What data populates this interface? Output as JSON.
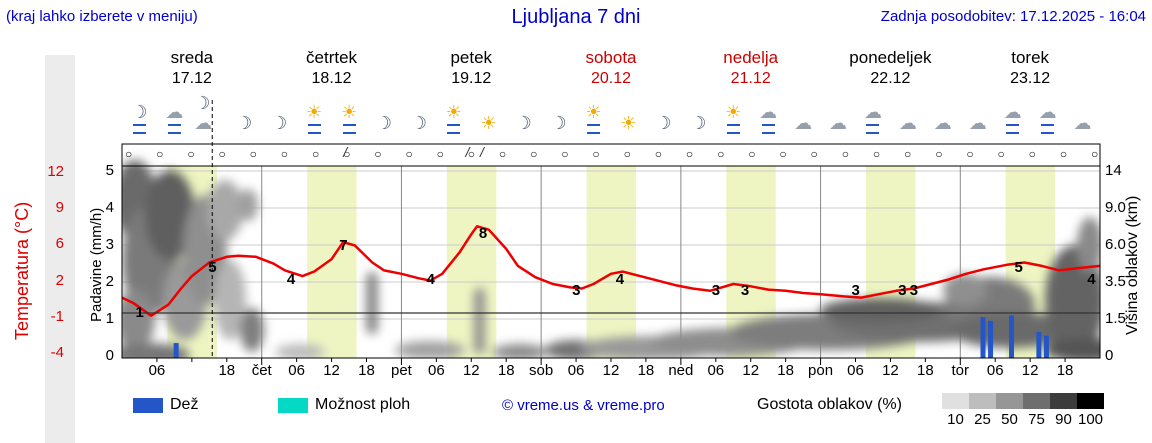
{
  "header": {
    "menu_hint": "(kraj lahko izberete v meniju)",
    "title": "Ljubljana 7 dni",
    "last_update": "Zadnja posodobitev: 17.12.2025 - 16:04"
  },
  "days": [
    {
      "name": "sreda",
      "date": "17.12",
      "color": "#000000"
    },
    {
      "name": "četrtek",
      "date": "18.12",
      "color": "#000000"
    },
    {
      "name": "petek",
      "date": "19.12",
      "color": "#000000"
    },
    {
      "name": "sobota",
      "date": "20.12",
      "color": "#cc0000"
    },
    {
      "name": "nedelja",
      "date": "21.12",
      "color": "#cc0000"
    },
    {
      "name": "ponedeljek",
      "date": "22.12",
      "color": "#000000"
    },
    {
      "name": "torek",
      "date": "23.12",
      "color": "#000000"
    }
  ],
  "weather_icons": [
    "moon-rain",
    "cloud-rain",
    "moon-cloud",
    "moon",
    "moon",
    "sun-rain",
    "sun-rain",
    "moon",
    "moon",
    "sun-rain",
    "sun",
    "moon",
    "moon",
    "sun-rain",
    "sun",
    "moon",
    "moon",
    "sun-rain",
    "cloud-rain",
    "cloud",
    "cloud",
    "cloud-rain",
    "cloud",
    "cloud",
    "cloud",
    "cloud-rain",
    "cloud-rain",
    "cloud"
  ],
  "cloud_cover": {
    "symbol": "○",
    "count": 32,
    "special_marks": [
      {
        "hour": 38,
        "glyph": "/"
      },
      {
        "hour": 59,
        "glyph": "/"
      },
      {
        "hour": 61.5,
        "glyph": "/"
      }
    ]
  },
  "axes": {
    "temperature": {
      "label": "Temperatura (°C)",
      "ticks": [
        "12",
        "9",
        "6",
        "2",
        "-1",
        "-4"
      ],
      "color": "#dd0000"
    },
    "precipitation": {
      "label": "Padavine (mm/h)",
      "ticks": [
        "5",
        "4",
        "3",
        "2",
        "1",
        "0"
      ]
    },
    "cloud_height": {
      "label": "Višina oblakov (km)",
      "ticks": [
        "14",
        "9.0",
        "6.0",
        "3.5",
        "1.5",
        "0"
      ]
    }
  },
  "xaxis": {
    "labels": [
      {
        "d": 0,
        "h": 6,
        "t": "06"
      },
      {
        "d": 0,
        "h": 18,
        "t": "18"
      },
      {
        "d": 1,
        "h": 0,
        "t": "čet"
      },
      {
        "d": 1,
        "h": 6,
        "t": "06"
      },
      {
        "d": 1,
        "h": 12,
        "t": "12"
      },
      {
        "d": 1,
        "h": 18,
        "t": "18"
      },
      {
        "d": 2,
        "h": 0,
        "t": "pet"
      },
      {
        "d": 2,
        "h": 6,
        "t": "06"
      },
      {
        "d": 2,
        "h": 12,
        "t": "12"
      },
      {
        "d": 2,
        "h": 18,
        "t": "18"
      },
      {
        "d": 3,
        "h": 0,
        "t": "sob"
      },
      {
        "d": 3,
        "h": 6,
        "t": "06"
      },
      {
        "d": 3,
        "h": 12,
        "t": "12"
      },
      {
        "d": 3,
        "h": 18,
        "t": "18"
      },
      {
        "d": 4,
        "h": 0,
        "t": "ned"
      },
      {
        "d": 4,
        "h": 6,
        "t": "06"
      },
      {
        "d": 4,
        "h": 12,
        "t": "12"
      },
      {
        "d": 4,
        "h": 18,
        "t": "18"
      },
      {
        "d": 5,
        "h": 0,
        "t": "pon"
      },
      {
        "d": 5,
        "h": 6,
        "t": "06"
      },
      {
        "d": 5,
        "h": 12,
        "t": "12"
      },
      {
        "d": 5,
        "h": 18,
        "t": "18"
      },
      {
        "d": 6,
        "h": 0,
        "t": "tor"
      },
      {
        "d": 6,
        "h": 6,
        "t": "06"
      },
      {
        "d": 6,
        "h": 12,
        "t": "12"
      },
      {
        "d": 6,
        "h": 18,
        "t": "18"
      }
    ]
  },
  "legend": {
    "rain": "Dež",
    "showers": "Možnost ploh",
    "copyright": "© vreme.us & vreme.pro",
    "cloud_density": "Gostota oblakov (%)",
    "density_ticks": [
      "10",
      "25",
      "50",
      "75",
      "90",
      "100"
    ],
    "density_colors": [
      "#e0e0e0",
      "#bdbdbd",
      "#969696",
      "#6e6e6e",
      "#3c3c3c",
      "#000000"
    ]
  },
  "colors": {
    "blue_text": "#0000cc",
    "red_text": "#dd0000",
    "temperature_line": "#ee0000",
    "rain": "#2456c8",
    "showers": "#06d8c6",
    "daylight_band": "#eef5c2"
  },
  "chart_data": {
    "type": "line",
    "title": "Ljubljana 7 dni",
    "subtitle": "7-day meteogram: temperature line, precipitation bars, cloud density shading",
    "x_axis": {
      "span_days": 7,
      "start_day": "sreda 17.12",
      "end_day": "torek 23.12",
      "hour_ticks": [
        6,
        12,
        18
      ]
    },
    "y_left_temperature": {
      "label": "Temperatura (°C)",
      "ticks": [
        12,
        9,
        6,
        2,
        -1,
        -4
      ]
    },
    "y_left_precipitation": {
      "label": "Padavine (mm/h)",
      "ticks": [
        0,
        1,
        2,
        3,
        4,
        5
      ]
    },
    "y_right_cloud_height": {
      "label": "Višina oblakov (km)",
      "ticks": [
        0,
        1.5,
        3.5,
        6.0,
        9.0,
        14
      ]
    },
    "temperature_series": {
      "name": "Temperatura",
      "color": "#ee0000",
      "x_unit": "hours from 17.12 00:00",
      "points": [
        [
          0,
          0.9
        ],
        [
          2,
          0.4
        ],
        [
          5,
          -0.7
        ],
        [
          8,
          0.3
        ],
        [
          10,
          1.6
        ],
        [
          12,
          2.8
        ],
        [
          15,
          4.0
        ],
        [
          18,
          4.5
        ],
        [
          20,
          4.6
        ],
        [
          23,
          4.5
        ],
        [
          26,
          3.9
        ],
        [
          28,
          3.3
        ],
        [
          31,
          2.8
        ],
        [
          33,
          3.2
        ],
        [
          36,
          4.3
        ],
        [
          38,
          5.8
        ],
        [
          40,
          5.5
        ],
        [
          43,
          4.0
        ],
        [
          45,
          3.3
        ],
        [
          48,
          3.0
        ],
        [
          51,
          2.6
        ],
        [
          53,
          2.4
        ],
        [
          55,
          3.0
        ],
        [
          58,
          4.9
        ],
        [
          60,
          6.5
        ],
        [
          61,
          7.2
        ],
        [
          63,
          6.9
        ],
        [
          66,
          5.2
        ],
        [
          68,
          3.7
        ],
        [
          71,
          2.7
        ],
        [
          74,
          2.1
        ],
        [
          77,
          1.8
        ],
        [
          79,
          1.7
        ],
        [
          81,
          2.1
        ],
        [
          84,
          3.0
        ],
        [
          86,
          3.2
        ],
        [
          89,
          2.8
        ],
        [
          92,
          2.4
        ],
        [
          95,
          2.0
        ],
        [
          98,
          1.7
        ],
        [
          101,
          1.5
        ],
        [
          103,
          1.8
        ],
        [
          105,
          2.1
        ],
        [
          108,
          1.9
        ],
        [
          111,
          1.6
        ],
        [
          114,
          1.5
        ],
        [
          117,
          1.3
        ],
        [
          120,
          1.2
        ],
        [
          124,
          1.0
        ],
        [
          127,
          0.9
        ],
        [
          130,
          1.2
        ],
        [
          133,
          1.5
        ],
        [
          136,
          1.7
        ],
        [
          139,
          2.1
        ],
        [
          142,
          2.5
        ],
        [
          145,
          3.0
        ],
        [
          148,
          3.4
        ],
        [
          152,
          3.8
        ],
        [
          155,
          4.0
        ],
        [
          158,
          3.7
        ],
        [
          161,
          3.3
        ],
        [
          164,
          3.5
        ],
        [
          168,
          3.7
        ]
      ]
    },
    "temperature_labels": [
      {
        "day": 0,
        "hour": 3,
        "value": 1
      },
      {
        "day": 0,
        "hour": 15.5,
        "value": 5
      },
      {
        "day": 1,
        "hour": 5,
        "value": 4
      },
      {
        "day": 1,
        "hour": 14,
        "value": 7
      },
      {
        "day": 2,
        "hour": 5,
        "value": 4
      },
      {
        "day": 2,
        "hour": 14,
        "value": 8
      },
      {
        "day": 3,
        "hour": 6,
        "value": 3
      },
      {
        "day": 3,
        "hour": 13.5,
        "value": 4
      },
      {
        "day": 4,
        "hour": 6,
        "value": 3
      },
      {
        "day": 4,
        "hour": 11,
        "value": 3
      },
      {
        "day": 5,
        "hour": 6,
        "value": 3
      },
      {
        "day": 5,
        "hour": 14,
        "value": 3
      },
      {
        "day": 5,
        "hour": 16,
        "value": 3
      },
      {
        "day": 6,
        "hour": 10,
        "value": 5
      },
      {
        "day": 6,
        "hour": 22.5,
        "value": 4
      }
    ],
    "precipitation_bars": [
      {
        "hour": 9.3,
        "mm": 0.35
      },
      {
        "hour": 147.9,
        "mm": 1.05
      },
      {
        "hour": 149.2,
        "mm": 0.95
      },
      {
        "hour": 152.8,
        "mm": 1.1
      },
      {
        "hour": 157.5,
        "mm": 0.65
      },
      {
        "hour": 158.8,
        "mm": 0.55
      }
    ],
    "daylight_band_hours": [
      7.8,
      16.3
    ],
    "current_time_marker_hour": 15.5,
    "legend_position": "bottom"
  }
}
